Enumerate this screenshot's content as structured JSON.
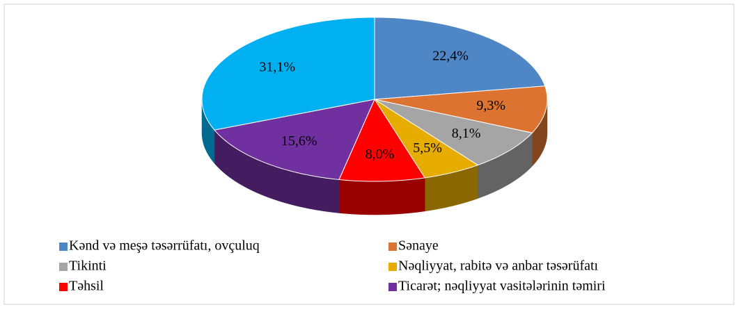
{
  "chart_data": {
    "type": "pie",
    "categories": [
      "Kənd və meşə təsərrüfatı, ovçuluq",
      "Sənaye",
      "Tikinti",
      "Nəqliyyat, rabitə və anbar təsərüfatı",
      "Təhsil",
      "Ticarət; nəqliyyat vasitələrinin təmiri",
      null
    ],
    "values": [
      22.4,
      9.3,
      8.1,
      5.5,
      8.0,
      15.6,
      31.1
    ],
    "value_labels": [
      "22,4%",
      "9,3%",
      "8,1%",
      "5,5%",
      "8,0%",
      "15,6%",
      "31,1%"
    ],
    "colors": [
      "#4f86c6",
      "#dc7330",
      "#a5a5a5",
      "#e6ac00",
      "#ff0000",
      "#7030a0",
      "#00b0f0"
    ],
    "legend": "bottom"
  }
}
